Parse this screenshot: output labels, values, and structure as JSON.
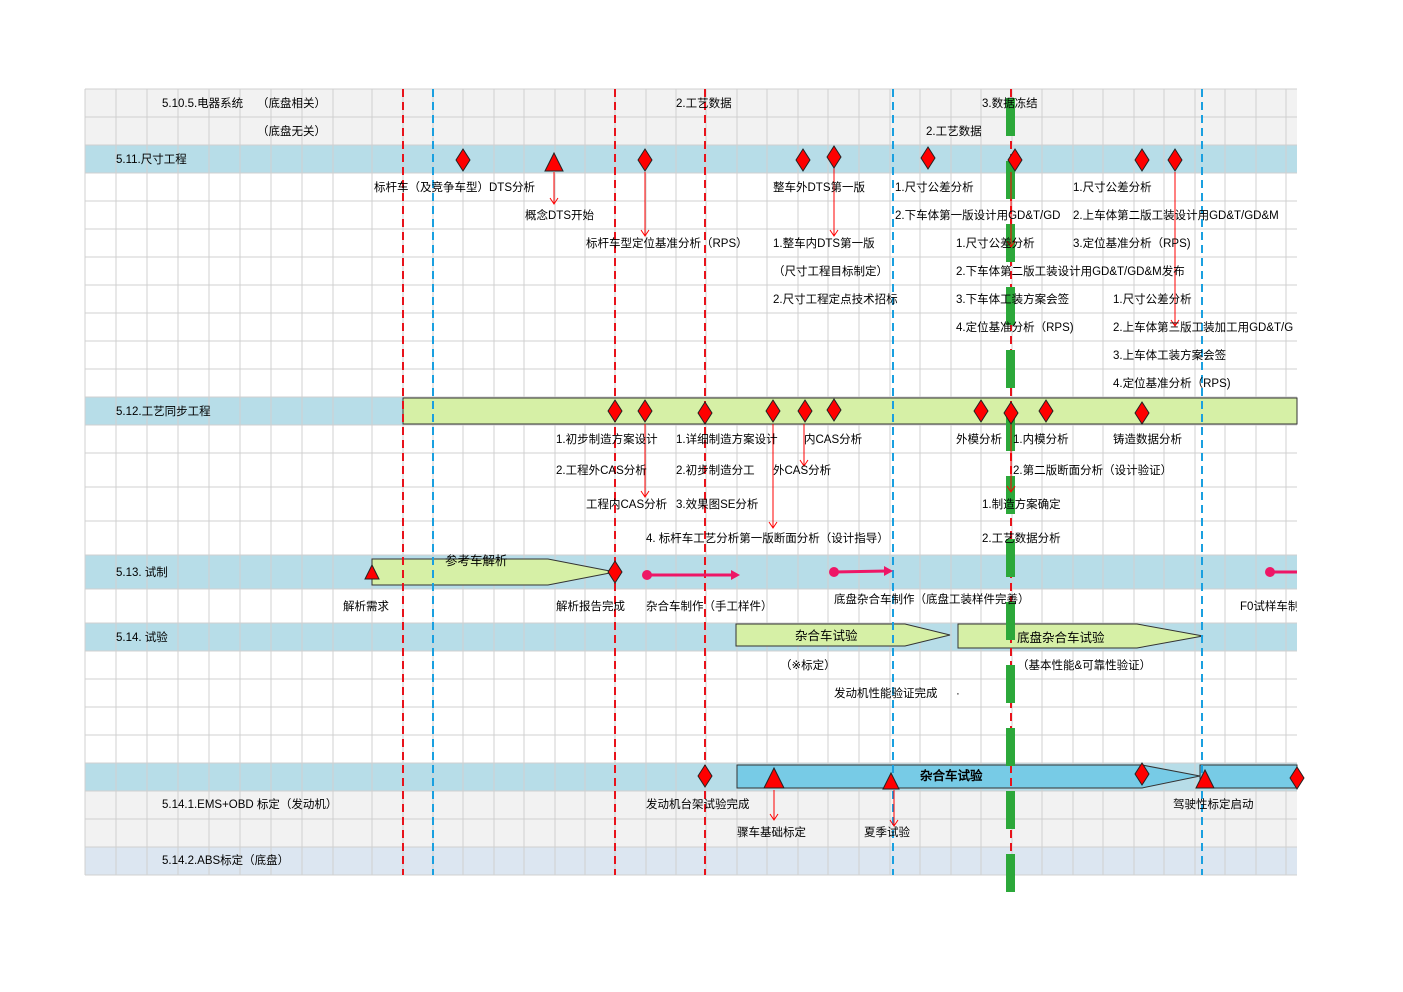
{
  "colors": {
    "grid_line": "#d0d0d0",
    "row_gray": "#f2f2f2",
    "row_blue": "#b7dde8",
    "row_blue_last": "#dce6f1",
    "red_dash": "#e8131b",
    "blue_dash": "#1aa0e0",
    "freeze_green": "#2ca83a",
    "bar_green": "#d6f0a6",
    "bar_cyan": "#77cbe6",
    "milestone_red": "#ff0000",
    "trial_pink": "#ee1666"
  },
  "rows": {
    "r0_a": "5.10.5.电器系统",
    "r0_b": "（底盘相关）",
    "r1_b": "（底盘无关）",
    "sec_511": "5.11.尺寸工程",
    "sec_512": "5.12.工艺同步工程",
    "sec_513": "5.13. 试制",
    "sec_514": "5.14. 试验",
    "r_ems": "5.14.1.EMS+OBD 标定（发动机）",
    "r_abs": "5.14.2.ABS标定（底盘）"
  },
  "electrical": {
    "t1": "2.工艺数据",
    "t2": "3.数据冻结",
    "t3": "2.工艺数据"
  },
  "dimension": {
    "t01": "标杆车（及竞争车型）DTS分析",
    "t02": "概念DTS开始",
    "t03": "标杆车型定位基准分析（RPS）",
    "t04": "整车外DTS第一版",
    "t05": "1.整车内DTS第一版",
    "t06": "（尺寸工程目标制定）",
    "t07": "2.尺寸工程定点技术招标",
    "t08": "1.尺寸公差分析",
    "t09": "2.下车体第一版设计用GD&T/GD",
    "t10": "1.尺寸公差分析",
    "t11": "2.下车体第二版工装设计用GD&T/GD&M发布",
    "t12": "3.下车体工装方案会签",
    "t13": "4.定位基准分析（RPS)",
    "t14": "1.尺寸公差分析",
    "t15": "2.上车体第二版工装设计用GD&T/GD&M",
    "t16": "3.定位基准分析（RPS)",
    "t17": "1.尺寸公差分析",
    "t18": "2.上车体第三版工装加工用GD&T/G",
    "t19": "3.上车体工装方案会签",
    "t20": "4.定位基准分析（RPS)"
  },
  "process": {
    "t01": "1.初步制造方案设计",
    "t02": "2.工程外CAS分析",
    "t03": "工程内CAS分析",
    "t04": "1.详细制造方案设计",
    "t05": "2.初步制造分工",
    "t06": "3.效果图SE分析",
    "t07": "4. 标杆车工艺分析第一版断面分析（设计指导）",
    "t08": "内CAS分析",
    "t09": "外CAS分析",
    "t10": "外模分析",
    "t11": "1.内模分析",
    "t12": "2.第二版断面分析（设计验证）",
    "t13": "1.制造方案确定",
    "t14": "2.工艺数据分析",
    "t15": "铸造数据分析"
  },
  "trial": {
    "arrow_label": "参考车解析",
    "t01": "解析需求",
    "t02": "解析报告完成",
    "t03": "杂合车制作（手工样件）",
    "t04": "底盘杂合车制作（底盘工装样件完善）",
    "t05": "F0试样车制"
  },
  "test": {
    "arrow1": "杂合车试验",
    "arrow2": "底盘杂合车试验",
    "t01": "（※标定）",
    "t02": "发动机性能验证完成",
    "t02_dot": "·",
    "t03": "（基本性能&可靠性验证）",
    "arrow3": "杂合车试验",
    "t04": "发动机台架试验完成",
    "t05": "骤车基础标定",
    "t06": "夏季试验",
    "t07": "驾驶性标定启动"
  }
}
